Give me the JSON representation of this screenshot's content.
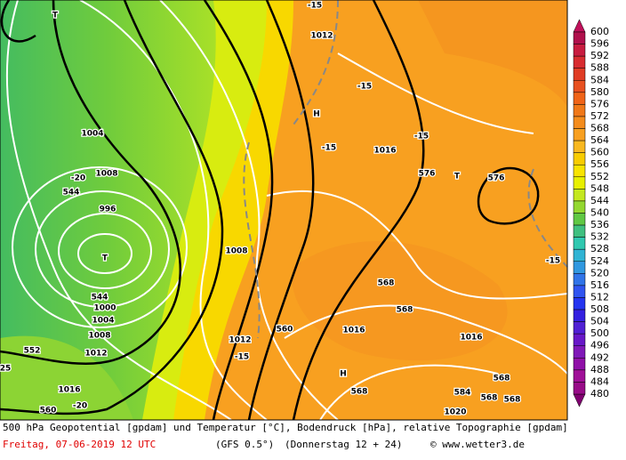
{
  "map": {
    "labels": [
      {
        "text": "T"
      },
      {
        "text": "1012"
      },
      {
        "text": "-15"
      },
      {
        "text": "-15"
      },
      {
        "text": "H"
      },
      {
        "text": "1004"
      },
      {
        "text": "-15"
      },
      {
        "text": "-15"
      },
      {
        "text": "1016"
      },
      {
        "text": "-20"
      },
      {
        "text": "1008"
      },
      {
        "text": "576"
      },
      {
        "text": "T"
      },
      {
        "text": "576"
      },
      {
        "text": "544"
      },
      {
        "text": "996"
      },
      {
        "text": "T"
      },
      {
        "text": "1008"
      },
      {
        "text": "-15"
      },
      {
        "text": "568"
      },
      {
        "text": "544"
      },
      {
        "text": "1000"
      },
      {
        "text": "568"
      },
      {
        "text": "1004"
      },
      {
        "text": "560"
      },
      {
        "text": "1016"
      },
      {
        "text": "1008"
      },
      {
        "text": "1016"
      },
      {
        "text": "552"
      },
      {
        "text": "1012"
      },
      {
        "text": "1012"
      },
      {
        "text": "-15"
      },
      {
        "text": "25"
      },
      {
        "text": "H"
      },
      {
        "text": "568"
      },
      {
        "text": "1016"
      },
      {
        "text": "584"
      },
      {
        "text": "568"
      },
      {
        "text": "568"
      },
      {
        "text": "568"
      },
      {
        "text": "-20"
      },
      {
        "text": "560"
      },
      {
        "text": "1020"
      }
    ]
  },
  "legend": {
    "labels": [
      600,
      596,
      592,
      588,
      584,
      580,
      576,
      572,
      568,
      564,
      560,
      556,
      552,
      548,
      544,
      540,
      536,
      532,
      528,
      524,
      520,
      516,
      512,
      508,
      504,
      500,
      496,
      492,
      488,
      484,
      480
    ],
    "colors": [
      "#b0104c",
      "#c81c40",
      "#d82c30",
      "#e03c24",
      "#e85020",
      "#f06418",
      "#f07818",
      "#f48c1c",
      "#f8a020",
      "#f8b820",
      "#f8cc00",
      "#f8e400",
      "#e8f000",
      "#c4e820",
      "#94d830",
      "#60c844",
      "#40c080",
      "#30c8b0",
      "#30b4d4",
      "#3098e0",
      "#3074e8",
      "#3054f0",
      "#2434f0",
      "#3420e0",
      "#5020d4",
      "#6818c8",
      "#8018b8",
      "#9010a8",
      "#a01098",
      "#980c88"
    ]
  },
  "footer": {
    "line1": "500 hPa Geopotential [gpdam] und Temperatur [°C], Bodendruck [hPa], relative Topographie [gpdam]",
    "date": "Freitag, 07-06-2019  12 UTC",
    "model": "(GFS 0.5°)",
    "run": "(Donnerstag 12 + 24)",
    "credit": "© www.wetter3.de"
  }
}
